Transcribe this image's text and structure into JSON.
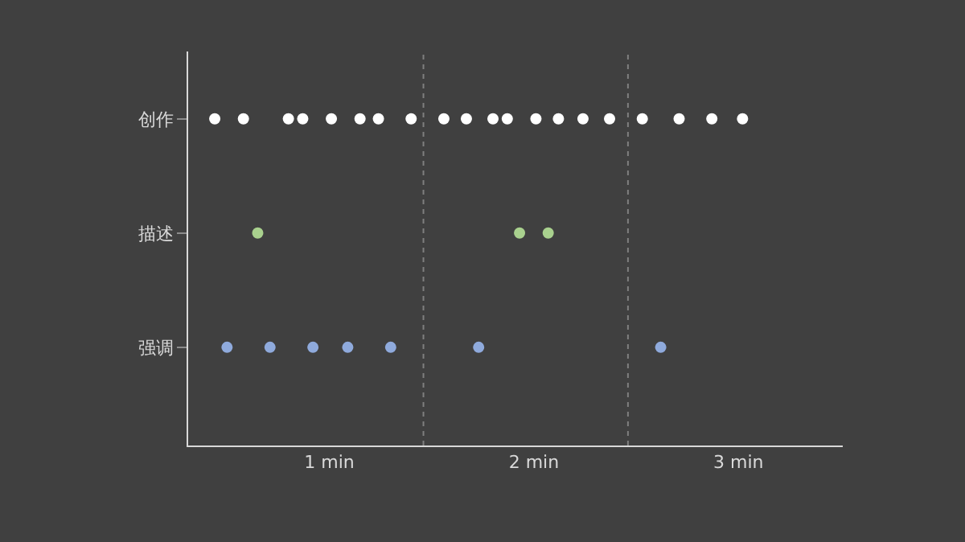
{
  "chart_data": {
    "type": "scatter",
    "orientation": "horizontal",
    "marker": "circle",
    "grid": false,
    "categories": [
      "创作",
      "描述",
      "强调"
    ],
    "xlim": [
      0.31,
      3.51
    ],
    "xticks": [
      {
        "value": 1,
        "label": "1 min"
      },
      {
        "value": 2,
        "label": "2 min"
      },
      {
        "value": 3,
        "label": "3 min"
      }
    ],
    "ref_lines": [
      {
        "axis": "x",
        "value": 1.46,
        "color": "#7f7f7f",
        "line_style": "dotted"
      },
      {
        "axis": "x",
        "value": 2.46,
        "color": "#7f7f7f",
        "line_style": "dotted"
      }
    ],
    "series": [
      {
        "colors": [
          "#ffffff",
          "#a9d18e",
          "#8faadc"
        ],
        "values": [
          0.44,
          0.65,
          0.5
        ]
      },
      {
        "colors": [
          "#ffffff",
          "#a9d18e",
          "#8faadc"
        ],
        "values": [
          0.58,
          1.93,
          0.71
        ]
      },
      {
        "colors": [
          "#ffffff",
          "#a9d18e",
          "#8faadc"
        ],
        "values": [
          0.8,
          2.07,
          0.92
        ]
      },
      {
        "colors": [
          "#ffffff",
          "#a9d18e",
          "#8faadc"
        ],
        "values": [
          0.87,
          null,
          1.09
        ]
      },
      {
        "colors": [
          "#ffffff",
          "#a9d18e",
          "#8faadc"
        ],
        "values": [
          1.01,
          null,
          1.3
        ]
      },
      {
        "colors": [
          "#ffffff",
          "#a9d18e",
          "#8faadc"
        ],
        "values": [
          1.15,
          null,
          1.73
        ]
      },
      {
        "colors": [
          "#ffffff",
          "#a9d18e",
          "#8faadc"
        ],
        "values": [
          1.24,
          null,
          2.62
        ]
      },
      {
        "colors": [
          "#ffffff",
          "#a9d18e",
          "#8faadc"
        ],
        "values": [
          1.4,
          null,
          null
        ]
      },
      {
        "colors": [
          "#ffffff",
          "#a9d18e",
          "#8faadc"
        ],
        "values": [
          1.56,
          null,
          null
        ]
      },
      {
        "colors": [
          "#ffffff",
          "#a9d18e",
          "#8faadc"
        ],
        "values": [
          1.67,
          null,
          null
        ]
      },
      {
        "colors": [
          "#ffffff",
          "#a9d18e",
          "#8faadc"
        ],
        "values": [
          1.8,
          null,
          null
        ]
      },
      {
        "colors": [
          "#ffffff",
          "#a9d18e",
          "#8faadc"
        ],
        "values": [
          1.87,
          null,
          null
        ]
      },
      {
        "colors": [
          "#ffffff",
          "#a9d18e",
          "#8faadc"
        ],
        "values": [
          2.01,
          null,
          null
        ]
      },
      {
        "colors": [
          "#ffffff",
          "#a9d18e",
          "#8faadc"
        ],
        "values": [
          2.12,
          null,
          null
        ]
      },
      {
        "colors": [
          "#ffffff",
          "#a9d18e",
          "#8faadc"
        ],
        "values": [
          2.24,
          null,
          null
        ]
      },
      {
        "colors": [
          "#ffffff",
          "#a9d18e",
          "#8faadc"
        ],
        "values": [
          2.37,
          null,
          null
        ]
      },
      {
        "colors": [
          "#ffffff",
          "#a9d18e",
          "#8faadc"
        ],
        "values": [
          2.53,
          null,
          null
        ]
      },
      {
        "colors": [
          "#ffffff",
          "#a9d18e",
          "#8faadc"
        ],
        "values": [
          2.71,
          null,
          null
        ]
      },
      {
        "colors": [
          "#ffffff",
          "#a9d18e",
          "#8faadc"
        ],
        "values": [
          2.87,
          null,
          null
        ]
      },
      {
        "colors": [
          "#ffffff",
          "#a9d18e",
          "#8faadc"
        ],
        "values": [
          3.02,
          null,
          null
        ]
      }
    ]
  }
}
